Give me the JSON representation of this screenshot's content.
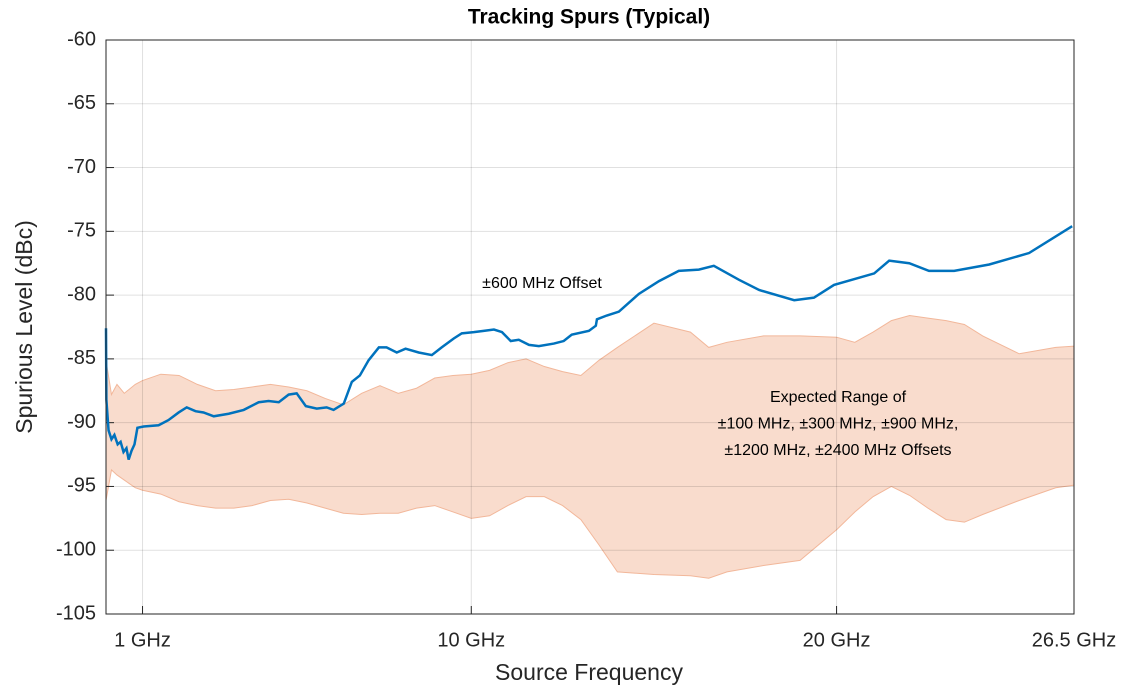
{
  "chart_data": {
    "type": "line",
    "title": "Tracking Spurs (Typical)",
    "xlabel": "Source Frequency",
    "ylabel": "Spurious Level (dBc)",
    "xlim": [
      0,
      26.5
    ],
    "ylim": [
      -105,
      -60
    ],
    "xticks": [
      {
        "value": 1,
        "label": "1 GHz"
      },
      {
        "value": 10,
        "label": "10 GHz"
      },
      {
        "value": 20,
        "label": "20 GHz"
      },
      {
        "value": 26.5,
        "label": "26.5 GHz"
      }
    ],
    "yticks": [
      -60,
      -65,
      -70,
      -75,
      -80,
      -85,
      -90,
      -95,
      -100,
      -105
    ],
    "grid": true,
    "series": [
      {
        "name": "±600 MHz Offset",
        "color": "#0072bd",
        "x": [
          0,
          0.01,
          0.07,
          0.15,
          0.23,
          0.32,
          0.4,
          0.48,
          0.56,
          0.62,
          0.7,
          0.78,
          0.86,
          1.03,
          1.44,
          1.71,
          1.99,
          2.21,
          2.45,
          2.67,
          2.95,
          3.36,
          3.77,
          4.18,
          4.45,
          4.73,
          5.0,
          5.22,
          5.47,
          5.77,
          6.04,
          6.23,
          6.51,
          6.73,
          6.95,
          7.19,
          7.47,
          7.68,
          7.96,
          8.2,
          8.56,
          8.92,
          9.19,
          9.52,
          9.74,
          10.07,
          10.34,
          10.62,
          10.84,
          11.08,
          11.3,
          11.58,
          11.85,
          12.26,
          12.53,
          12.75,
          13.22,
          13.41,
          13.44,
          13.71,
          14.04,
          14.59,
          15.14,
          15.68,
          16.23,
          16.64,
          17.33,
          17.88,
          18.84,
          19.38,
          19.93,
          21.03,
          21.44,
          21.99,
          22.53,
          23.22,
          24.18,
          25.27,
          26.45
        ],
        "values": [
          -82.6,
          -88.2,
          -90.6,
          -91.3,
          -90.96,
          -91.7,
          -91.5,
          -92.3,
          -92.0,
          -92.9,
          -92.2,
          -91.7,
          -90.4,
          -90.3,
          -90.2,
          -89.8,
          -89.2,
          -88.8,
          -89.1,
          -89.2,
          -89.5,
          -89.3,
          -89.0,
          -88.4,
          -88.3,
          -88.4,
          -87.8,
          -87.7,
          -88.7,
          -88.9,
          -88.8,
          -89.0,
          -88.5,
          -86.8,
          -86.3,
          -85.1,
          -84.1,
          -84.1,
          -84.5,
          -84.2,
          -84.5,
          -84.7,
          -84.1,
          -83.4,
          -83.0,
          -82.9,
          -82.8,
          -82.7,
          -82.9,
          -83.6,
          -83.5,
          -83.9,
          -84.0,
          -83.8,
          -83.6,
          -83.1,
          -82.8,
          -82.4,
          -81.9,
          -81.6,
          -81.3,
          -79.9,
          -78.9,
          -78.1,
          -78.0,
          -77.7,
          -78.8,
          -79.6,
          -80.4,
          -80.2,
          -79.2,
          -78.3,
          -77.3,
          -77.5,
          -78.1,
          -78.1,
          -77.6,
          -76.7,
          -74.6
        ]
      }
    ],
    "band": {
      "label_lines": [
        "Expected Range of",
        "±100 MHz, ±300 MHz, ±900 MHz,",
        "±1200 MHz, ±2400 MHz Offsets"
      ],
      "color": "#f9dccd",
      "edge_color": "#f2b79a",
      "x": [
        0,
        0.15,
        0.3,
        0.5,
        0.8,
        1.0,
        1.5,
        2,
        2.5,
        3,
        3.5,
        4,
        4.5,
        5,
        5.5,
        6,
        6.5,
        7,
        7.5,
        8,
        8.5,
        9,
        9.5,
        10,
        10.5,
        11,
        11.5,
        12,
        12.5,
        13,
        13.5,
        14,
        15,
        16,
        16.5,
        17,
        18,
        19,
        20,
        20.5,
        21,
        21.5,
        22,
        22.5,
        23,
        23.5,
        24,
        25,
        26,
        26.5
      ],
      "upper": [
        -85.1,
        -87.8,
        -87.0,
        -87.7,
        -87.0,
        -86.7,
        -86.2,
        -86.3,
        -87.0,
        -87.5,
        -87.4,
        -87.2,
        -87.0,
        -87.2,
        -87.5,
        -88.1,
        -88.6,
        -87.7,
        -87.1,
        -87.7,
        -87.3,
        -86.5,
        -86.3,
        -86.2,
        -85.9,
        -85.3,
        -85.0,
        -85.6,
        -86.0,
        -86.3,
        -85.1,
        -84.1,
        -82.2,
        -82.9,
        -84.1,
        -83.7,
        -83.2,
        -83.2,
        -83.3,
        -83.7,
        -82.9,
        -82.0,
        -81.6,
        -81.8,
        -82.0,
        -82.3,
        -83.2,
        -84.6,
        -84.1,
        -84.0
      ],
      "lower": [
        -96.1,
        -93.7,
        -94.1,
        -94.5,
        -95.1,
        -95.3,
        -95.6,
        -96.2,
        -96.5,
        -96.7,
        -96.7,
        -96.5,
        -96.1,
        -96.0,
        -96.3,
        -96.7,
        -97.1,
        -97.2,
        -97.1,
        -97.1,
        -96.7,
        -96.5,
        -97.0,
        -97.5,
        -97.3,
        -96.5,
        -95.8,
        -95.8,
        -96.5,
        -97.6,
        -99.6,
        -101.7,
        -101.9,
        -102.0,
        -102.2,
        -101.7,
        -101.2,
        -100.8,
        -98.4,
        -97.0,
        -95.8,
        -95.0,
        -95.7,
        -96.7,
        -97.6,
        -97.8,
        -97.2,
        -96.1,
        -95.1,
        -94.9
      ]
    }
  }
}
